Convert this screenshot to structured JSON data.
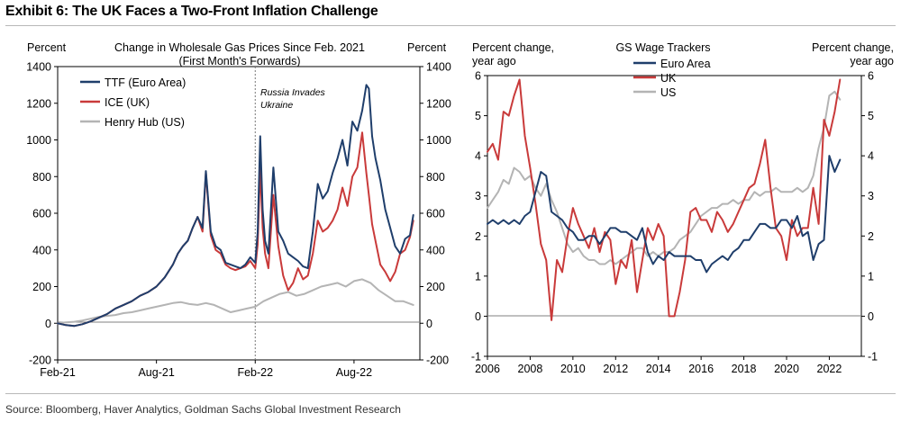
{
  "exhibit_title": "Exhibit 6: The UK Faces a Two-Front Inflation Challenge",
  "source": "Source: Bloomberg, Haver Analytics, Goldman Sachs Global Investment Research",
  "colors": {
    "navy": "#1f3e6b",
    "red": "#c93a3a",
    "gray": "#b4b4b4",
    "zero_line": "#808080",
    "event_line": "#777777"
  },
  "chart_data": [
    {
      "type": "line",
      "title": "Change in Wholesale Gas Prices Since Feb. 2021",
      "subtitle": "(First Month's Forwards)",
      "ylabel_left": "Percent",
      "ylabel_right": "Percent",
      "x_unit": "months since Feb-21",
      "xlim": [
        0,
        22
      ],
      "ylim": [
        -200,
        1400
      ],
      "yticks": [
        -200,
        0,
        200,
        400,
        600,
        800,
        1000,
        1200,
        1400
      ],
      "ytick_labels_left": [
        "-200",
        "0",
        "200",
        "400",
        "600",
        "800",
        "1000",
        "1200",
        "1400"
      ],
      "ytick_labels_right": [
        "-200",
        "0",
        "200",
        "400",
        "600",
        "800",
        "1000",
        "1200",
        "1400"
      ],
      "xticks": [
        0,
        6,
        12,
        18
      ],
      "xtick_labels": [
        "Feb-21",
        "Aug-21",
        "Feb-22",
        "Aug-22"
      ],
      "legend_position": "top-left",
      "annotation": {
        "text": "Russia Invades Ukraine",
        "x": 12.0
      },
      "series": [
        {
          "name": "TTF (Euro Area)",
          "color": "#1f3e6b",
          "x": [
            0,
            0.5,
            1,
            1.5,
            2,
            2.5,
            3,
            3.5,
            4,
            4.5,
            5,
            5.5,
            6,
            6.5,
            7,
            7.3,
            7.6,
            7.9,
            8.2,
            8.5,
            8.8,
            9,
            9.3,
            9.6,
            9.9,
            10.2,
            10.5,
            10.8,
            11.1,
            11.4,
            11.7,
            12,
            12.15,
            12.3,
            12.45,
            12.6,
            12.8,
            13.1,
            13.4,
            13.7,
            14,
            14.3,
            14.6,
            14.9,
            15.2,
            15.5,
            15.8,
            16.1,
            16.4,
            16.7,
            17,
            17.3,
            17.6,
            17.9,
            18.2,
            18.5,
            18.75,
            18.9,
            19.1,
            19.3,
            19.6,
            19.9,
            20.2,
            20.5,
            20.8,
            21.1,
            21.4,
            21.6
          ],
          "y": [
            0,
            -10,
            -15,
            -5,
            10,
            30,
            50,
            80,
            100,
            120,
            150,
            170,
            200,
            250,
            320,
            380,
            420,
            450,
            520,
            580,
            520,
            830,
            500,
            420,
            400,
            330,
            320,
            310,
            300,
            320,
            360,
            330,
            500,
            1020,
            620,
            450,
            380,
            850,
            500,
            450,
            380,
            360,
            340,
            310,
            300,
            500,
            760,
            680,
            720,
            820,
            900,
            1000,
            860,
            1100,
            1050,
            1160,
            1300,
            1280,
            1020,
            900,
            780,
            620,
            520,
            420,
            380,
            460,
            480,
            590
          ]
        },
        {
          "name": "ICE (UK)",
          "color": "#c93a3a",
          "x": [
            0,
            0.5,
            1,
            1.5,
            2,
            2.5,
            3,
            3.5,
            4,
            4.5,
            5,
            5.5,
            6,
            6.5,
            7,
            7.3,
            7.6,
            7.9,
            8.2,
            8.5,
            8.8,
            9,
            9.3,
            9.6,
            9.9,
            10.2,
            10.5,
            10.8,
            11.1,
            11.4,
            11.7,
            12,
            12.15,
            12.3,
            12.45,
            12.6,
            12.8,
            13.1,
            13.4,
            13.7,
            14,
            14.3,
            14.6,
            14.9,
            15.2,
            15.5,
            15.8,
            16.1,
            16.4,
            16.7,
            17,
            17.3,
            17.6,
            17.9,
            18.2,
            18.5,
            18.75,
            18.9,
            19.1,
            19.3,
            19.6,
            19.9,
            20.2,
            20.5,
            20.8,
            21.1,
            21.4,
            21.6
          ],
          "y": [
            0,
            -10,
            -15,
            -5,
            10,
            30,
            50,
            80,
            100,
            120,
            150,
            170,
            200,
            250,
            320,
            380,
            420,
            450,
            520,
            580,
            500,
            820,
            480,
            400,
            380,
            320,
            300,
            290,
            300,
            310,
            340,
            300,
            430,
            850,
            520,
            380,
            300,
            700,
            420,
            260,
            180,
            220,
            300,
            240,
            260,
            380,
            560,
            500,
            520,
            560,
            620,
            740,
            640,
            800,
            850,
            1040,
            820,
            700,
            540,
            450,
            320,
            280,
            230,
            280,
            380,
            400,
            470,
            560
          ]
        },
        {
          "name": "Henry Hub (US)",
          "color": "#b4b4b4",
          "x": [
            0,
            0.5,
            1,
            1.5,
            2,
            2.5,
            3,
            3.5,
            4,
            4.5,
            5,
            5.5,
            6,
            6.5,
            7,
            7.5,
            8,
            8.5,
            9,
            9.5,
            10,
            10.5,
            11,
            11.5,
            12,
            12.5,
            13,
            13.5,
            14,
            14.5,
            15,
            15.5,
            16,
            16.5,
            17,
            17.5,
            18,
            18.5,
            19,
            19.5,
            20,
            20.5,
            21,
            21.6
          ],
          "y": [
            0,
            5,
            8,
            15,
            25,
            35,
            40,
            45,
            55,
            60,
            70,
            80,
            90,
            100,
            110,
            115,
            105,
            100,
            110,
            100,
            80,
            60,
            70,
            80,
            90,
            120,
            140,
            160,
            170,
            150,
            160,
            180,
            200,
            210,
            220,
            200,
            230,
            240,
            220,
            180,
            150,
            120,
            120,
            100
          ]
        }
      ]
    },
    {
      "type": "line",
      "title": "GS Wage Trackers",
      "ylabel_left": "Percent change, year ago",
      "ylabel_right": "Percent change, year ago",
      "xlim": [
        2006,
        2023.5
      ],
      "ylim": [
        -1,
        6
      ],
      "yticks": [
        -1,
        0,
        1,
        2,
        3,
        4,
        5,
        6
      ],
      "ytick_labels_left": [
        "-1",
        "0",
        "1",
        "2",
        "3",
        "4",
        "5",
        "6"
      ],
      "ytick_labels_right": [
        "-1",
        "0",
        "1",
        "2",
        "3",
        "4",
        "5",
        "6"
      ],
      "xticks": [
        2006,
        2008,
        2010,
        2012,
        2014,
        2016,
        2018,
        2020,
        2022
      ],
      "xtick_labels": [
        "2006",
        "2008",
        "2010",
        "2012",
        "2014",
        "2016",
        "2018",
        "2020",
        "2022"
      ],
      "legend_position": "top-center",
      "series": [
        {
          "name": "Euro Area",
          "color": "#1f3e6b",
          "x": [
            2006,
            2006.25,
            2006.5,
            2006.75,
            2007,
            2007.25,
            2007.5,
            2007.75,
            2008,
            2008.25,
            2008.5,
            2008.75,
            2009,
            2009.25,
            2009.5,
            2009.75,
            2010,
            2010.25,
            2010.5,
            2010.75,
            2011,
            2011.25,
            2011.5,
            2011.75,
            2012,
            2012.25,
            2012.5,
            2012.75,
            2013,
            2013.25,
            2013.5,
            2013.75,
            2014,
            2014.25,
            2014.5,
            2014.75,
            2015,
            2015.25,
            2015.5,
            2015.75,
            2016,
            2016.25,
            2016.5,
            2016.75,
            2017,
            2017.25,
            2017.5,
            2017.75,
            2018,
            2018.25,
            2018.5,
            2018.75,
            2019,
            2019.25,
            2019.5,
            2019.75,
            2020,
            2020.25,
            2020.5,
            2020.75,
            2021,
            2021.25,
            2021.5,
            2021.75,
            2022,
            2022.25,
            2022.5
          ],
          "y": [
            2.3,
            2.4,
            2.3,
            2.4,
            2.3,
            2.4,
            2.3,
            2.5,
            2.6,
            3.1,
            3.6,
            3.5,
            2.6,
            2.5,
            2.4,
            2.2,
            2.1,
            1.9,
            1.9,
            2.0,
            2.0,
            1.8,
            2.0,
            2.2,
            2.2,
            2.1,
            2.1,
            2.0,
            1.9,
            2.2,
            1.6,
            1.3,
            1.5,
            1.4,
            1.6,
            1.5,
            1.5,
            1.5,
            1.5,
            1.4,
            1.4,
            1.1,
            1.3,
            1.4,
            1.5,
            1.4,
            1.6,
            1.7,
            1.9,
            1.9,
            2.1,
            2.3,
            2.3,
            2.2,
            2.2,
            2.4,
            2.4,
            2.2,
            2.5,
            2.0,
            2.1,
            1.4,
            1.8,
            1.9,
            4.0,
            3.6,
            3.9
          ]
        },
        {
          "name": "UK",
          "color": "#c93a3a",
          "x": [
            2006,
            2006.25,
            2006.5,
            2006.75,
            2007,
            2007.25,
            2007.5,
            2007.75,
            2008,
            2008.25,
            2008.5,
            2008.75,
            2009,
            2009.25,
            2009.5,
            2009.75,
            2010,
            2010.25,
            2010.5,
            2010.75,
            2011,
            2011.25,
            2011.5,
            2011.75,
            2012,
            2012.25,
            2012.5,
            2012.75,
            2013,
            2013.25,
            2013.5,
            2013.75,
            2014,
            2014.25,
            2014.5,
            2014.75,
            2015,
            2015.25,
            2015.5,
            2015.75,
            2016,
            2016.25,
            2016.5,
            2016.75,
            2017,
            2017.25,
            2017.5,
            2017.75,
            2018,
            2018.25,
            2018.5,
            2018.75,
            2019,
            2019.25,
            2019.5,
            2019.75,
            2020,
            2020.25,
            2020.5,
            2020.75,
            2021,
            2021.25,
            2021.5,
            2021.75,
            2022,
            2022.25,
            2022.5
          ],
          "y": [
            4.1,
            4.3,
            3.9,
            5.1,
            5.0,
            5.5,
            5.9,
            4.5,
            3.7,
            2.8,
            1.8,
            1.4,
            -0.1,
            1.4,
            1.1,
            2.0,
            2.7,
            2.3,
            2.0,
            1.7,
            2.2,
            1.6,
            2.1,
            1.9,
            0.8,
            1.4,
            1.2,
            1.9,
            0.6,
            1.4,
            2.2,
            1.9,
            2.3,
            2.0,
            0.0,
            0.0,
            0.6,
            1.4,
            2.6,
            2.7,
            2.4,
            2.4,
            2.1,
            2.6,
            2.4,
            2.1,
            2.3,
            2.6,
            2.9,
            3.2,
            3.3,
            3.8,
            4.4,
            3.2,
            2.2,
            2.0,
            1.4,
            2.4,
            2.0,
            2.2,
            2.2,
            3.2,
            2.3,
            4.9,
            4.5,
            5.1,
            5.9
          ]
        },
        {
          "name": "US",
          "color": "#b4b4b4",
          "x": [
            2006,
            2006.25,
            2006.5,
            2006.75,
            2007,
            2007.25,
            2007.5,
            2007.75,
            2008,
            2008.25,
            2008.5,
            2008.75,
            2009,
            2009.25,
            2009.5,
            2009.75,
            2010,
            2010.25,
            2010.5,
            2010.75,
            2011,
            2011.25,
            2011.5,
            2011.75,
            2012,
            2012.25,
            2012.5,
            2012.75,
            2013,
            2013.25,
            2013.5,
            2013.75,
            2014,
            2014.25,
            2014.5,
            2014.75,
            2015,
            2015.25,
            2015.5,
            2015.75,
            2016,
            2016.25,
            2016.5,
            2016.75,
            2017,
            2017.25,
            2017.5,
            2017.75,
            2018,
            2018.25,
            2018.5,
            2018.75,
            2019,
            2019.25,
            2019.5,
            2019.75,
            2020,
            2020.25,
            2020.5,
            2020.75,
            2021,
            2021.25,
            2021.5,
            2021.75,
            2022,
            2022.25,
            2022.5
          ],
          "y": [
            2.7,
            2.9,
            3.1,
            3.4,
            3.3,
            3.7,
            3.6,
            3.4,
            3.5,
            3.2,
            3.0,
            3.3,
            2.9,
            2.6,
            2.2,
            1.8,
            1.6,
            1.7,
            1.5,
            1.4,
            1.4,
            1.3,
            1.3,
            1.4,
            1.3,
            1.4,
            1.5,
            1.6,
            1.7,
            1.7,
            1.5,
            1.6,
            1.5,
            1.6,
            1.6,
            1.7,
            1.9,
            2.0,
            2.1,
            2.3,
            2.5,
            2.6,
            2.7,
            2.7,
            2.8,
            2.8,
            2.9,
            2.8,
            2.9,
            2.9,
            3.1,
            3.0,
            3.1,
            3.1,
            3.2,
            3.1,
            3.1,
            3.1,
            3.2,
            3.1,
            3.2,
            3.5,
            4.2,
            4.7,
            5.5,
            5.6,
            5.4
          ]
        }
      ]
    }
  ]
}
